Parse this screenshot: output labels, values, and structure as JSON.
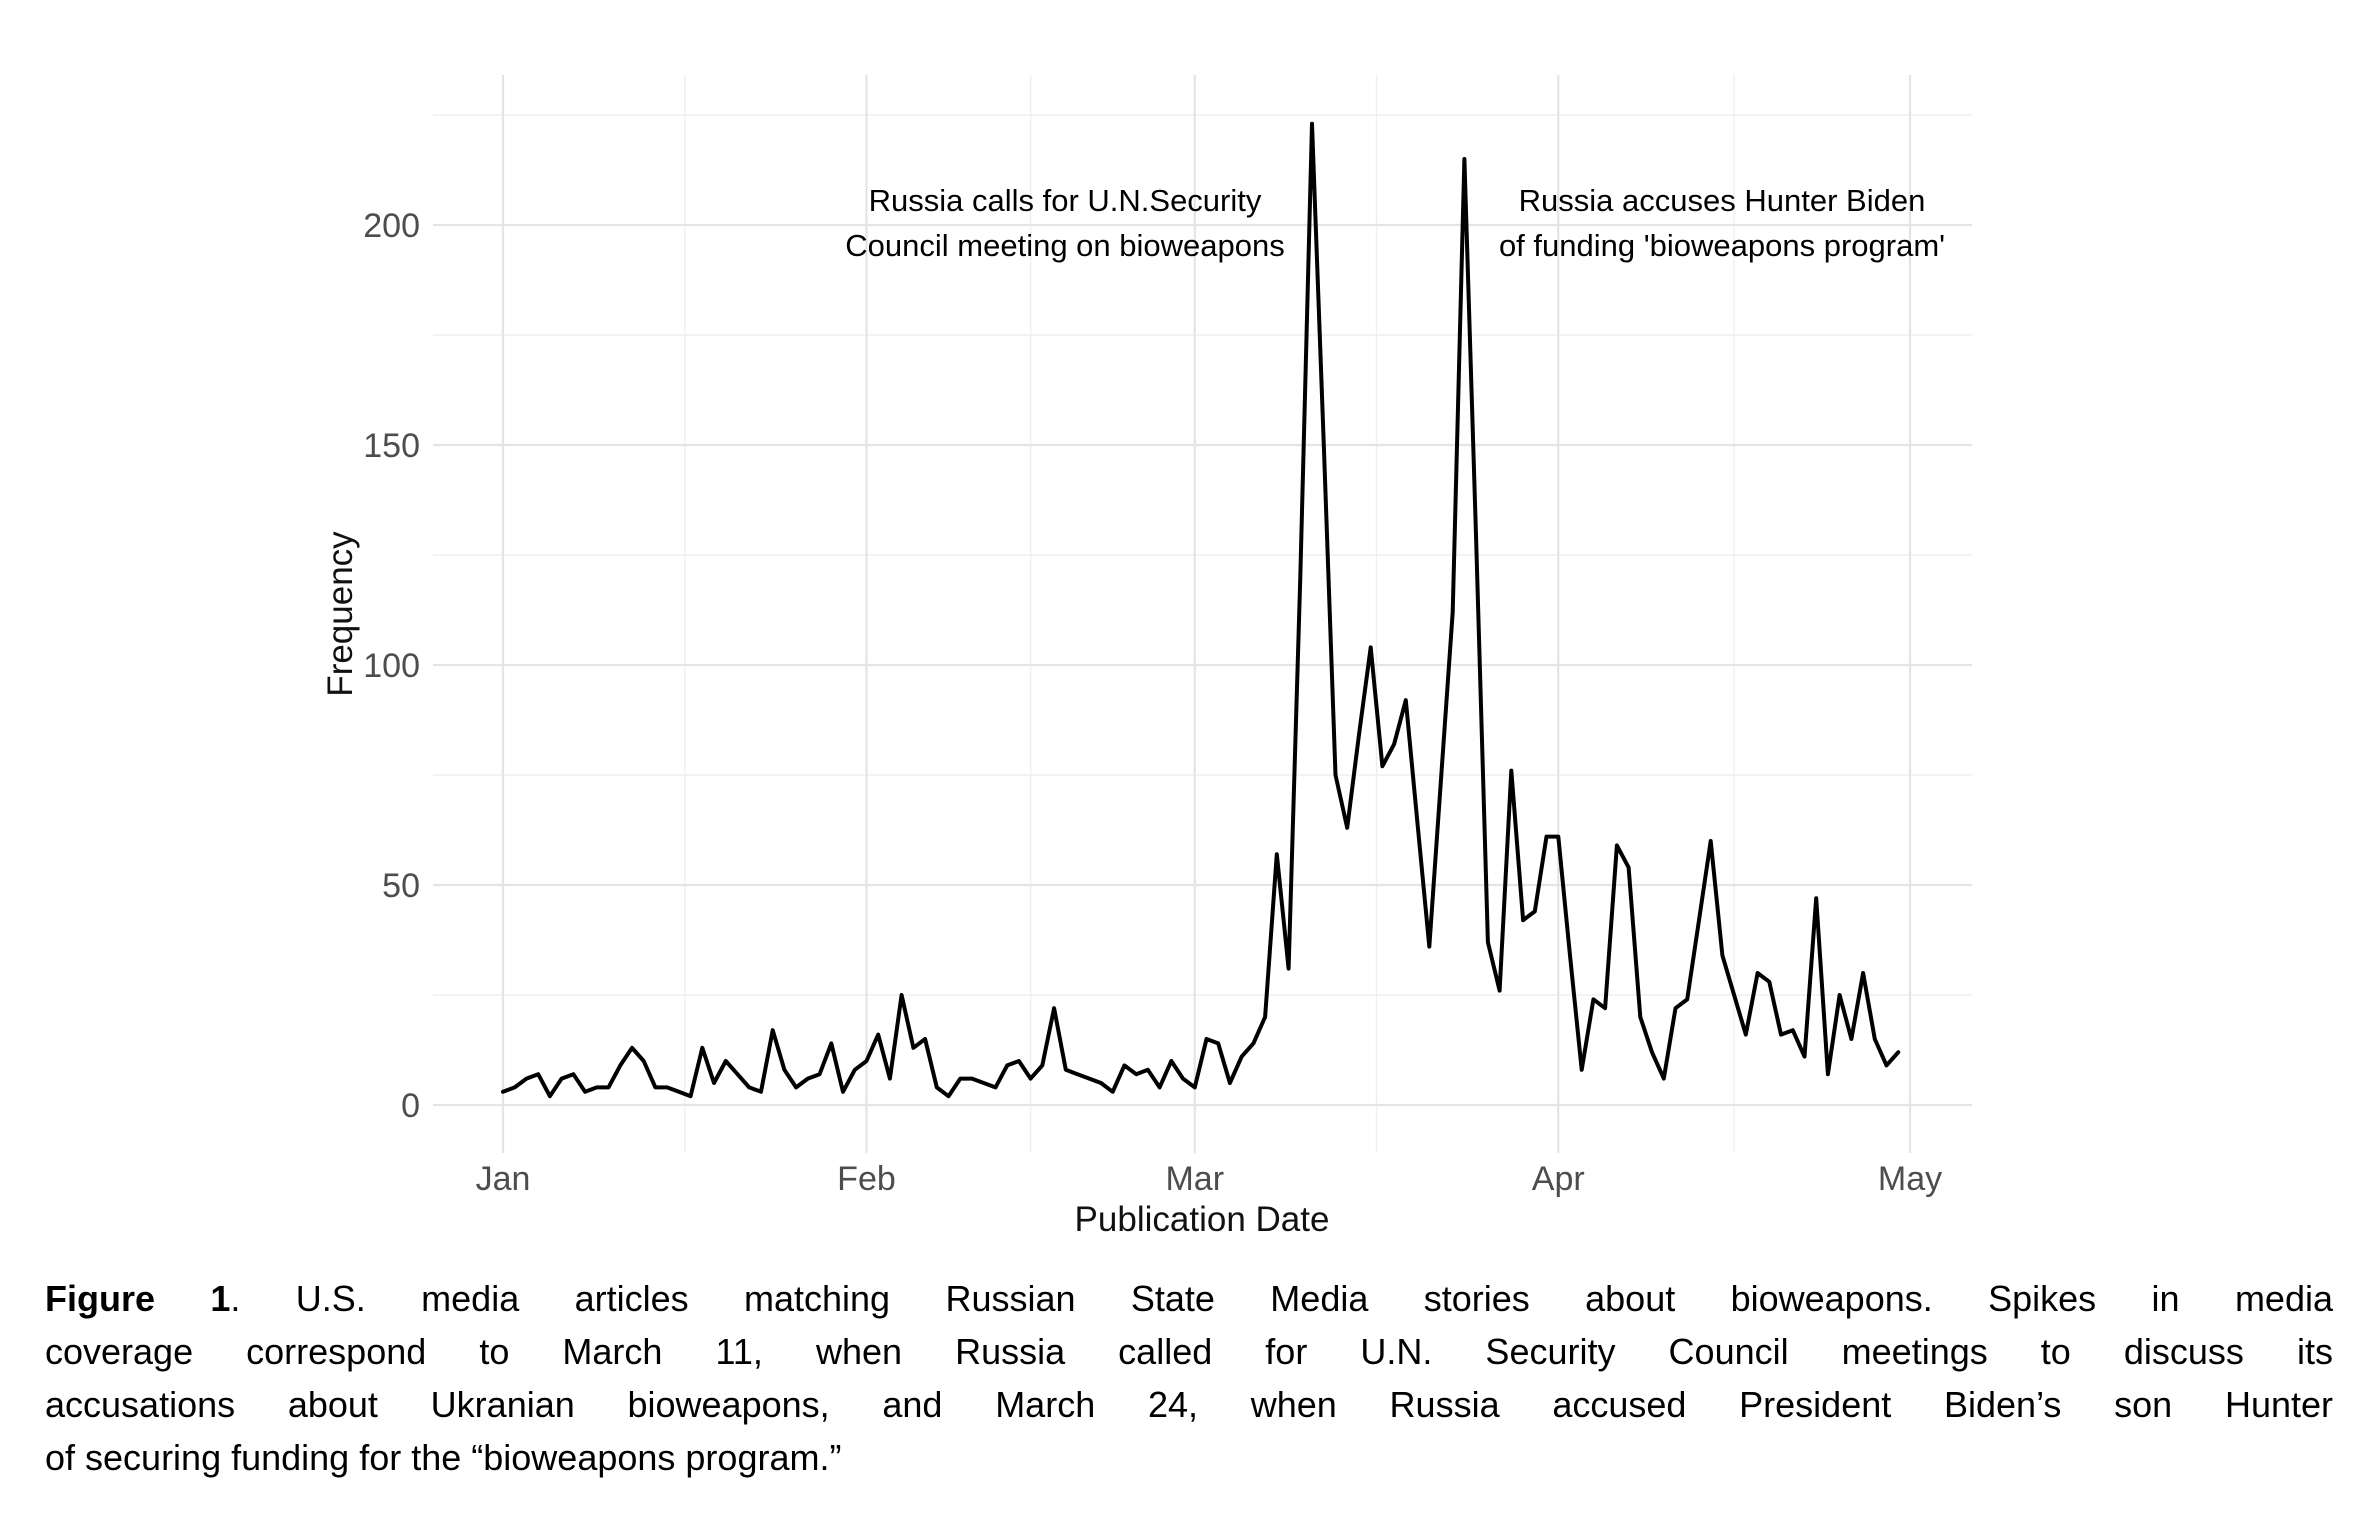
{
  "chart_data": {
    "type": "line",
    "title": "",
    "xlabel": "Publication Date",
    "ylabel": "Frequency",
    "grid": "on",
    "legend": "none",
    "line_color": "#000000",
    "background": "#ffffff",
    "y_axis": {
      "ticks": [
        0,
        50,
        100,
        150,
        200
      ],
      "minor_ticks": [
        25,
        75,
        125,
        175,
        225
      ],
      "range_shown": [
        -11,
        234
      ]
    },
    "x_axis": {
      "tick_labels": [
        "Jan",
        "Feb",
        "Mar",
        "Apr",
        "May"
      ],
      "tick_day_offsets": [
        0,
        31,
        59,
        90,
        120
      ],
      "minor_day_offsets": [
        15.5,
        45,
        74.5,
        105
      ],
      "start_date": "Jan 1",
      "end_date": "Apr 30"
    },
    "series": [
      {
        "name": "U.S. media articles matching Russian State Media bioweapons stories (daily frequency, Jan 1 - Apr 30)",
        "values": [
          3,
          4,
          6,
          7,
          2,
          6,
          7,
          3,
          4,
          4,
          9,
          13,
          10,
          4,
          4,
          3,
          2,
          13,
          5,
          10,
          7,
          4,
          3,
          17,
          8,
          4,
          6,
          7,
          14,
          3,
          8,
          10,
          16,
          6,
          25,
          13,
          15,
          4,
          2,
          6,
          6,
          5,
          4,
          9,
          10,
          6,
          9,
          22,
          8,
          7,
          6,
          5,
          3,
          9,
          7,
          8,
          4,
          10,
          6,
          4,
          15,
          14,
          5,
          11,
          14,
          20,
          57,
          31,
          120,
          223,
          150,
          75,
          63,
          84,
          104,
          77,
          82,
          92,
          64,
          36,
          74,
          112,
          215,
          128,
          37,
          26,
          76,
          42,
          44,
          61,
          61,
          34,
          8,
          24,
          22,
          59,
          54,
          20,
          12,
          6,
          22,
          24,
          42,
          60,
          34,
          25,
          16,
          30,
          28,
          16,
          17,
          11,
          47,
          7,
          25,
          15,
          30,
          15,
          9,
          12
        ]
      }
    ],
    "key_points": [
      {
        "label": "March 11",
        "value": 223
      },
      {
        "label": "March 24",
        "value": 215
      }
    ],
    "annotations": [
      {
        "lines": [
          "Russia calls for U.N.Security",
          "Council meeting on bioweapons"
        ],
        "anchor": "March 11 spike"
      },
      {
        "lines": [
          "Russia accuses Hunter Biden",
          "of funding 'bioweapons program'"
        ],
        "anchor": "March 24 spike"
      }
    ]
  },
  "axis_titles": {
    "y": "Frequency",
    "x": "Publication Date"
  },
  "caption": {
    "label_bold": "Figure 1",
    "line1_rest": ". U.S. media articles matching Russian State Media stories about bioweapons. Spikes in media",
    "line2": "coverage correspond to March 11, when Russia called for U.N. Security Council meetings to discuss its",
    "line3": "accusations about Ukranian bioweapons, and March 24, when Russia accused President Biden’s son Hunter",
    "line4": "of securing funding for the “bioweapons program.”"
  }
}
